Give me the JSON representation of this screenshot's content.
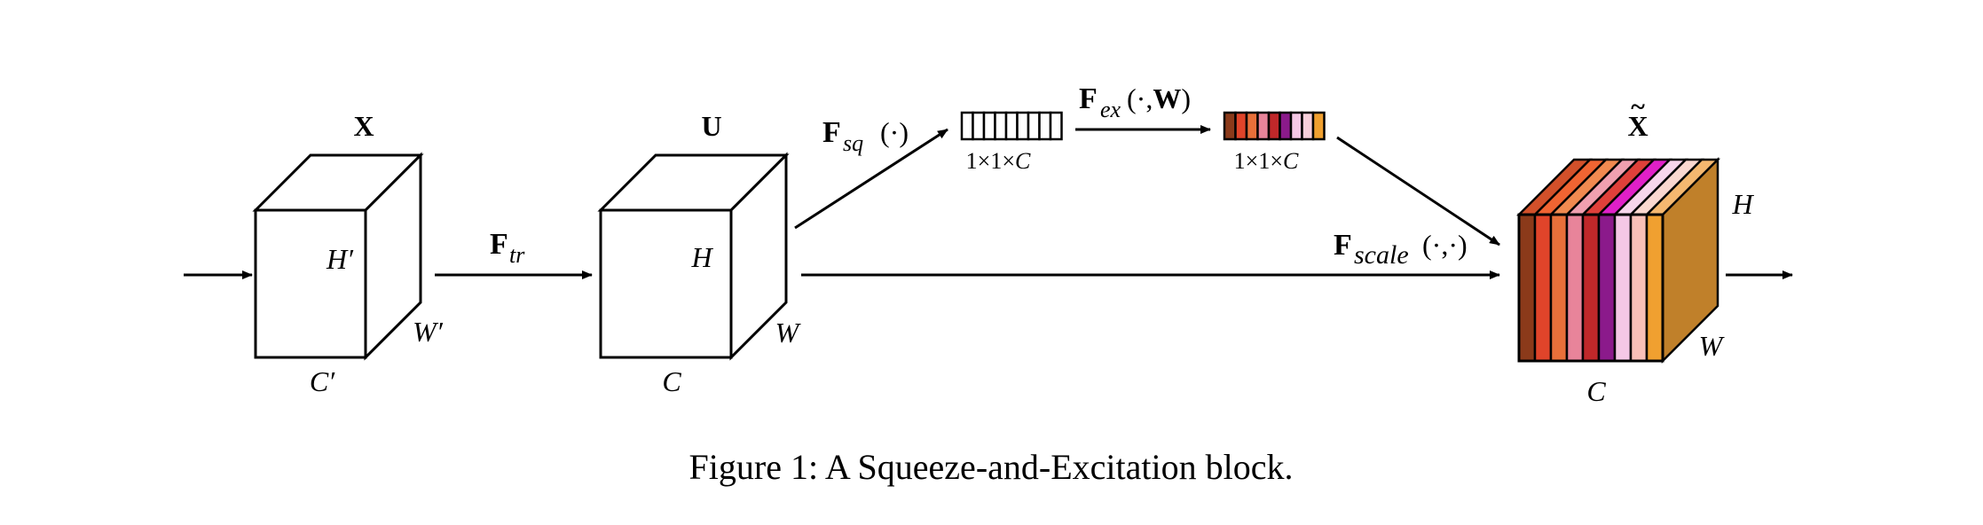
{
  "colors": {
    "channel_weights": [
      "#8B3A1A",
      "#E0442A",
      "#E8703A",
      "#E8849A",
      "#C0282A",
      "#8B1A8B",
      "#F5C8E6",
      "#F8D0DC",
      "#F0A030"
    ],
    "scaled_front": [
      "#8B3A1A",
      "#E0442A",
      "#E8703A",
      "#E8849A",
      "#C0282A",
      "#8B1A8B",
      "#F5C8E6",
      "#F8C0B8",
      "#F0A030"
    ],
    "scaled_top": [
      "#D2502A",
      "#F06432",
      "#F08A50",
      "#F0A0B0",
      "#E0403A",
      "#E020C8",
      "#F7D6EC",
      "#FAD8D0",
      "#F5B870"
    ],
    "scaled_side": "#C0802A"
  },
  "labels": {
    "input_X": "X",
    "input_H": "H′",
    "input_W": "W′",
    "input_C": "C′",
    "transform_F": "F",
    "transform_sub": "tr",
    "feature_U": "U",
    "feature_H": "H",
    "feature_W": "W",
    "feature_C": "C",
    "squeeze_F": "F",
    "squeeze_sub": "sq",
    "squeeze_args": "(·)",
    "squeeze_dims": "1×1×",
    "squeeze_dims_C": "C",
    "excite_F": "F",
    "excite_sub": "ex",
    "excite_args_open": "(·,",
    "excite_args_W": "W",
    "excite_args_close": ")",
    "excite_dims": "1×1×",
    "excite_dims_C": "C",
    "scale_F": "F",
    "scale_sub": "scale",
    "scale_args": "(·,·)",
    "output_X": "X",
    "output_tilde": "~",
    "output_H": "H",
    "output_W": "W",
    "output_C": "C"
  },
  "caption": "Figure 1: A Squeeze-and-Excitation block."
}
